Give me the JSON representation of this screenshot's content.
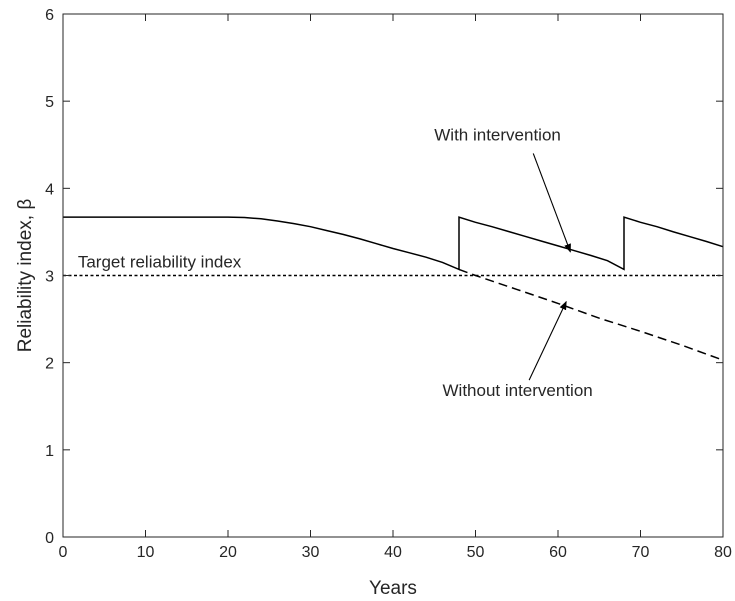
{
  "chart_data": {
    "type": "line",
    "title": "",
    "xlabel": "Years",
    "ylabel": "Reliability index, β",
    "xlim": [
      0,
      80
    ],
    "ylim": [
      0,
      6
    ],
    "xticks": [
      0,
      10,
      20,
      30,
      40,
      50,
      60,
      70,
      80
    ],
    "yticks": [
      0,
      1,
      2,
      3,
      4,
      5,
      6
    ],
    "grid": false,
    "series": [
      {
        "name": "With intervention",
        "style": "solid",
        "points": [
          [
            0,
            3.67
          ],
          [
            20,
            3.67
          ],
          [
            22,
            3.665
          ],
          [
            24,
            3.65
          ],
          [
            26,
            3.625
          ],
          [
            28,
            3.595
          ],
          [
            30,
            3.56
          ],
          [
            32,
            3.515
          ],
          [
            34,
            3.47
          ],
          [
            36,
            3.42
          ],
          [
            38,
            3.365
          ],
          [
            40,
            3.31
          ],
          [
            42,
            3.26
          ],
          [
            44,
            3.21
          ],
          [
            46,
            3.15
          ],
          [
            48,
            3.07
          ],
          [
            48,
            3.67
          ],
          [
            50,
            3.61
          ],
          [
            52,
            3.56
          ],
          [
            54,
            3.505
          ],
          [
            56,
            3.45
          ],
          [
            58,
            3.395
          ],
          [
            60,
            3.34
          ],
          [
            62,
            3.285
          ],
          [
            64,
            3.23
          ],
          [
            66,
            3.17
          ],
          [
            68,
            3.07
          ],
          [
            68,
            3.67
          ],
          [
            70,
            3.61
          ],
          [
            72,
            3.56
          ],
          [
            74,
            3.5
          ],
          [
            76,
            3.445
          ],
          [
            78,
            3.39
          ],
          [
            80,
            3.33
          ]
        ]
      },
      {
        "name": "Without intervention",
        "style": "dashed",
        "points": [
          [
            48,
            3.07
          ],
          [
            50,
            3.0
          ],
          [
            55,
            2.84
          ],
          [
            60,
            2.68
          ],
          [
            65,
            2.51
          ],
          [
            70,
            2.36
          ],
          [
            75,
            2.2
          ],
          [
            80,
            2.03
          ]
        ]
      }
    ],
    "reference_line": {
      "label": "Target reliability index",
      "y": 3.0,
      "style": "dotted"
    },
    "annotations": [
      {
        "text": "With intervention",
        "text_x": 45,
        "text_y": 4.55,
        "arrow_from": [
          57,
          4.4
        ],
        "arrow_to": [
          61.5,
          3.27
        ]
      },
      {
        "text": "Without intervention",
        "text_x": 46,
        "text_y": 1.62,
        "arrow_from": [
          56.5,
          1.8
        ],
        "arrow_to": [
          61,
          2.7
        ]
      }
    ],
    "colors": {
      "line": "#000000",
      "axis": "#262626"
    }
  }
}
